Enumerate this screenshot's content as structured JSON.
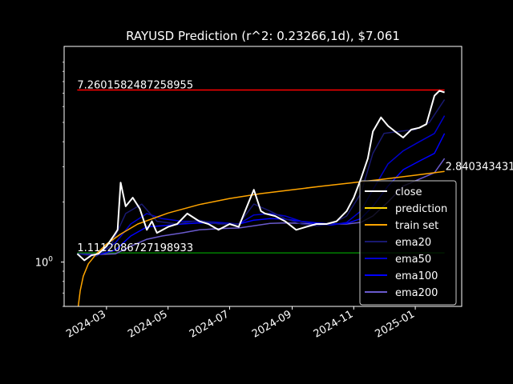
{
  "chart_data": {
    "type": "line",
    "title": "RAYUSD Prediction (r^2: 0.23266,1d), $7.061",
    "xlabel": "",
    "ylabel": "",
    "y_scale": "log",
    "ylim": [
      0.6,
      12.0
    ],
    "xlim": [
      "2024-01-19",
      "2025-02-16"
    ],
    "x_ticks": [
      {
        "date": "2024-03-01",
        "label": "2024-03"
      },
      {
        "date": "2024-05-01",
        "label": "2024-05"
      },
      {
        "date": "2024-07-01",
        "label": "2024-07"
      },
      {
        "date": "2024-09-01",
        "label": "2024-09"
      },
      {
        "date": "2024-11-01",
        "label": "2024-11"
      },
      {
        "date": "2025-01-01",
        "label": "2025-01"
      }
    ],
    "y_ticks": [
      {
        "value": 1.0,
        "label": "10^0"
      }
    ],
    "hlines": [
      {
        "name": "max",
        "value": 7.2601582487258955,
        "label": "7.2601582487258955",
        "color": "#ff0000"
      },
      {
        "name": "min",
        "value": 1.1112086727198933,
        "label": "1.1112086727198933",
        "color": "#008000"
      }
    ],
    "end_label": {
      "value": 2.840343431,
      "label": "2.840343431"
    },
    "legend": {
      "placement": "lower-right",
      "entries": [
        "close",
        "prediction",
        "train set",
        "ema20",
        "ema50",
        "ema100",
        "ema200"
      ]
    },
    "series": [
      {
        "name": "close",
        "color": "#ffffff",
        "width": 2,
        "x": [
          "2024-02-01",
          "2024-02-08",
          "2024-02-15",
          "2024-02-22",
          "2024-03-01",
          "2024-03-08",
          "2024-03-12",
          "2024-03-15",
          "2024-03-20",
          "2024-03-27",
          "2024-04-03",
          "2024-04-10",
          "2024-04-15",
          "2024-04-20",
          "2024-05-01",
          "2024-05-10",
          "2024-05-20",
          "2024-06-01",
          "2024-06-10",
          "2024-06-20",
          "2024-07-01",
          "2024-07-10",
          "2024-07-20",
          "2024-07-25",
          "2024-08-01",
          "2024-08-05",
          "2024-08-15",
          "2024-08-25",
          "2024-09-05",
          "2024-09-15",
          "2024-09-25",
          "2024-10-05",
          "2024-10-15",
          "2024-10-25",
          "2024-11-01",
          "2024-11-08",
          "2024-11-15",
          "2024-11-20",
          "2024-11-28",
          "2024-12-05",
          "2024-12-12",
          "2024-12-20",
          "2024-12-28",
          "2025-01-05",
          "2025-01-12",
          "2025-01-20",
          "2025-01-25",
          "2025-01-30"
        ],
        "values": [
          1.1,
          1.02,
          1.08,
          1.1,
          1.2,
          1.35,
          1.45,
          2.5,
          1.9,
          2.1,
          1.85,
          1.45,
          1.6,
          1.4,
          1.5,
          1.55,
          1.75,
          1.6,
          1.55,
          1.45,
          1.55,
          1.5,
          2.0,
          2.3,
          1.8,
          1.75,
          1.7,
          1.6,
          1.45,
          1.5,
          1.55,
          1.55,
          1.6,
          1.8,
          2.1,
          2.6,
          3.3,
          4.5,
          5.3,
          4.8,
          4.5,
          4.2,
          4.6,
          4.7,
          4.9,
          6.8,
          7.2,
          7.06
        ]
      },
      {
        "name": "ema20",
        "color": "#191970",
        "width": 1.5,
        "x": [
          "2024-02-01",
          "2024-02-20",
          "2024-03-05",
          "2024-03-20",
          "2024-04-05",
          "2024-04-20",
          "2024-05-10",
          "2024-06-01",
          "2024-06-20",
          "2024-07-10",
          "2024-07-25",
          "2024-08-10",
          "2024-08-25",
          "2024-09-10",
          "2024-09-25",
          "2024-10-10",
          "2024-10-25",
          "2024-11-08",
          "2024-11-20",
          "2024-12-01",
          "2024-12-15",
          "2025-01-01",
          "2025-01-15",
          "2025-01-30"
        ],
        "values": [
          1.1,
          1.07,
          1.2,
          1.75,
          1.95,
          1.6,
          1.55,
          1.62,
          1.55,
          1.55,
          1.95,
          1.8,
          1.65,
          1.55,
          1.52,
          1.55,
          1.7,
          2.2,
          3.5,
          4.4,
          4.5,
          4.6,
          5.0,
          6.5
        ]
      },
      {
        "name": "ema50",
        "color": "#0000cd",
        "width": 1.5,
        "x": [
          "2024-02-01",
          "2024-02-20",
          "2024-03-10",
          "2024-03-25",
          "2024-04-10",
          "2024-04-25",
          "2024-05-15",
          "2024-06-01",
          "2024-06-20",
          "2024-07-10",
          "2024-07-25",
          "2024-08-10",
          "2024-08-25",
          "2024-09-10",
          "2024-09-25",
          "2024-10-10",
          "2024-10-25",
          "2024-11-08",
          "2024-11-20",
          "2024-12-05",
          "2024-12-20",
          "2025-01-05",
          "2025-01-20",
          "2025-01-30"
        ],
        "values": [
          1.1,
          1.08,
          1.25,
          1.55,
          1.75,
          1.65,
          1.6,
          1.6,
          1.58,
          1.55,
          1.72,
          1.75,
          1.7,
          1.6,
          1.55,
          1.53,
          1.58,
          1.8,
          2.3,
          3.1,
          3.6,
          4.0,
          4.4,
          5.4
        ]
      },
      {
        "name": "ema100",
        "color": "#0000ff",
        "width": 1.5,
        "x": [
          "2024-02-01",
          "2024-02-20",
          "2024-03-10",
          "2024-03-25",
          "2024-04-10",
          "2024-04-25",
          "2024-05-15",
          "2024-06-01",
          "2024-06-20",
          "2024-07-10",
          "2024-07-25",
          "2024-08-10",
          "2024-08-25",
          "2024-09-10",
          "2024-09-25",
          "2024-10-10",
          "2024-10-25",
          "2024-11-08",
          "2024-11-20",
          "2024-12-05",
          "2024-12-20",
          "2025-01-05",
          "2025-01-20",
          "2025-01-30"
        ],
        "values": [
          1.1,
          1.08,
          1.15,
          1.35,
          1.5,
          1.52,
          1.55,
          1.57,
          1.56,
          1.55,
          1.62,
          1.65,
          1.64,
          1.6,
          1.57,
          1.55,
          1.56,
          1.65,
          1.9,
          2.4,
          2.9,
          3.2,
          3.5,
          4.4
        ]
      },
      {
        "name": "ema200",
        "color": "#6a5acd",
        "width": 1.5,
        "x": [
          "2024-02-01",
          "2024-02-20",
          "2024-03-10",
          "2024-03-25",
          "2024-04-10",
          "2024-04-25",
          "2024-05-15",
          "2024-06-01",
          "2024-06-20",
          "2024-07-10",
          "2024-07-25",
          "2024-08-10",
          "2024-08-25",
          "2024-09-10",
          "2024-09-25",
          "2024-10-10",
          "2024-10-25",
          "2024-11-08",
          "2024-11-20",
          "2024-12-05",
          "2024-12-20",
          "2025-01-05",
          "2025-01-20",
          "2025-01-30"
        ],
        "values": [
          1.1,
          1.09,
          1.1,
          1.2,
          1.3,
          1.35,
          1.4,
          1.45,
          1.47,
          1.48,
          1.52,
          1.56,
          1.57,
          1.56,
          1.55,
          1.55,
          1.55,
          1.58,
          1.7,
          2.0,
          2.4,
          2.6,
          2.8,
          3.3
        ]
      },
      {
        "name": "prediction",
        "color": "#ffa500",
        "width": 1.5,
        "x": [
          "2024-02-01",
          "2024-02-02",
          "2024-02-04",
          "2024-02-07",
          "2024-02-12",
          "2024-02-20",
          "2024-03-01",
          "2024-03-15",
          "2024-04-01",
          "2024-05-01",
          "2024-06-01",
          "2024-07-01",
          "2024-08-01",
          "2024-09-01",
          "2024-10-01",
          "2024-11-01",
          "2024-12-01",
          "2025-01-01",
          "2025-01-30"
        ],
        "values": [
          0.5,
          0.6,
          0.72,
          0.85,
          0.98,
          1.1,
          1.23,
          1.38,
          1.55,
          1.76,
          1.94,
          2.08,
          2.2,
          2.3,
          2.4,
          2.5,
          2.6,
          2.72,
          2.84
        ]
      },
      {
        "name": "train set",
        "color": "#ffa500",
        "width": 1.5,
        "x": [],
        "values": []
      }
    ]
  },
  "legend_colors": {
    "close": "#ffffff",
    "prediction": "#ffd700",
    "train set": "#ffa500",
    "ema20": "#191970",
    "ema50": "#0000cd",
    "ema100": "#0000ff",
    "ema200": "#6a5acd"
  }
}
